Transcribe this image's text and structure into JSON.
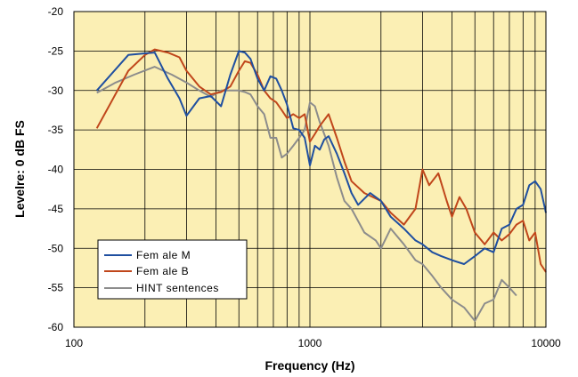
{
  "chart_data": {
    "type": "line",
    "title": "",
    "xlabel": "Frequency (Hz)",
    "ylabel": "Levelre: 0 dB FS",
    "x_scale": "log",
    "xlim": [
      100,
      10000
    ],
    "ylim": [
      -60,
      -20
    ],
    "x_ticks": [
      100,
      1000,
      10000
    ],
    "x_tick_labels": [
      "100",
      "1000",
      "10000"
    ],
    "y_ticks": [
      -20,
      -25,
      -30,
      -35,
      -40,
      -45,
      -50,
      -55,
      -60
    ],
    "y_tick_labels": [
      "-20",
      "-25",
      "-30",
      "-35",
      "-40",
      "-45",
      "-50",
      "-55",
      "-60"
    ],
    "grid": true,
    "background_color": "#fbefb4",
    "legend_position": "bottom-left",
    "series": [
      {
        "name": "Fem ale M",
        "color": "#1f4fa0",
        "points": [
          [
            125,
            -30
          ],
          [
            170,
            -25.5
          ],
          [
            200,
            -25.3
          ],
          [
            220,
            -25.2
          ],
          [
            250,
            -28.5
          ],
          [
            280,
            -31
          ],
          [
            300,
            -33.2
          ],
          [
            340,
            -31
          ],
          [
            380,
            -30.7
          ],
          [
            420,
            -32
          ],
          [
            460,
            -28
          ],
          [
            500,
            -25
          ],
          [
            530,
            -25.2
          ],
          [
            560,
            -26
          ],
          [
            600,
            -28.5
          ],
          [
            640,
            -30
          ],
          [
            680,
            -28.2
          ],
          [
            720,
            -28.5
          ],
          [
            760,
            -30
          ],
          [
            800,
            -31.8
          ],
          [
            850,
            -34.8
          ],
          [
            900,
            -35
          ],
          [
            950,
            -36
          ],
          [
            1000,
            -39.5
          ],
          [
            1050,
            -37
          ],
          [
            1100,
            -37.5
          ],
          [
            1150,
            -36.2
          ],
          [
            1200,
            -35.8
          ],
          [
            1300,
            -38
          ],
          [
            1400,
            -40.5
          ],
          [
            1500,
            -43
          ],
          [
            1600,
            -44.5
          ],
          [
            1800,
            -43
          ],
          [
            2000,
            -44
          ],
          [
            2200,
            -46
          ],
          [
            2500,
            -47.5
          ],
          [
            2800,
            -49
          ],
          [
            3000,
            -49.5
          ],
          [
            3300,
            -50.5
          ],
          [
            3600,
            -51
          ],
          [
            4000,
            -51.5
          ],
          [
            4500,
            -52
          ],
          [
            5000,
            -51
          ],
          [
            5500,
            -50
          ],
          [
            6000,
            -50.5
          ],
          [
            6500,
            -47.5
          ],
          [
            7000,
            -47
          ],
          [
            7500,
            -45
          ],
          [
            8000,
            -44.5
          ],
          [
            8500,
            -42
          ],
          [
            9000,
            -41.5
          ],
          [
            9500,
            -42.5
          ],
          [
            10000,
            -45.5
          ]
        ]
      },
      {
        "name": "Fem ale B",
        "color": "#c0461b",
        "points": [
          [
            125,
            -34.8
          ],
          [
            170,
            -27.5
          ],
          [
            200,
            -25.5
          ],
          [
            220,
            -24.8
          ],
          [
            250,
            -25.2
          ],
          [
            280,
            -25.8
          ],
          [
            300,
            -27.5
          ],
          [
            340,
            -29.5
          ],
          [
            380,
            -30.5
          ],
          [
            420,
            -30.2
          ],
          [
            460,
            -29.5
          ],
          [
            500,
            -27.5
          ],
          [
            530,
            -26.3
          ],
          [
            560,
            -26.5
          ],
          [
            600,
            -28
          ],
          [
            640,
            -30
          ],
          [
            680,
            -31
          ],
          [
            720,
            -31.5
          ],
          [
            760,
            -32.5
          ],
          [
            800,
            -33.5
          ],
          [
            850,
            -33
          ],
          [
            900,
            -33.5
          ],
          [
            950,
            -33
          ],
          [
            1000,
            -36.5
          ],
          [
            1050,
            -35.5
          ],
          [
            1100,
            -34.5
          ],
          [
            1200,
            -33
          ],
          [
            1300,
            -36
          ],
          [
            1400,
            -39
          ],
          [
            1500,
            -41.5
          ],
          [
            1700,
            -43
          ],
          [
            2000,
            -44
          ],
          [
            2200,
            -45.5
          ],
          [
            2500,
            -47
          ],
          [
            2800,
            -45
          ],
          [
            3000,
            -40
          ],
          [
            3200,
            -42
          ],
          [
            3500,
            -40.5
          ],
          [
            3800,
            -44
          ],
          [
            4000,
            -46
          ],
          [
            4300,
            -43.5
          ],
          [
            4600,
            -45
          ],
          [
            5000,
            -48
          ],
          [
            5500,
            -49.5
          ],
          [
            6000,
            -48
          ],
          [
            6500,
            -49
          ],
          [
            7000,
            -48.2
          ],
          [
            7500,
            -47
          ],
          [
            8000,
            -46.5
          ],
          [
            8500,
            -49
          ],
          [
            9000,
            -48
          ],
          [
            9500,
            -52
          ],
          [
            10000,
            -53
          ]
        ]
      },
      {
        "name": "HINT sentences",
        "color": "#8c8c8c",
        "points": [
          [
            125,
            -30.3
          ],
          [
            150,
            -29
          ],
          [
            180,
            -28
          ],
          [
            220,
            -27
          ],
          [
            260,
            -28
          ],
          [
            300,
            -29
          ],
          [
            340,
            -30
          ],
          [
            380,
            -30.8
          ],
          [
            420,
            -30
          ],
          [
            460,
            -30
          ],
          [
            500,
            -30
          ],
          [
            530,
            -30.2
          ],
          [
            560,
            -30.5
          ],
          [
            600,
            -32
          ],
          [
            640,
            -33
          ],
          [
            680,
            -36
          ],
          [
            720,
            -36
          ],
          [
            760,
            -38.5
          ],
          [
            800,
            -38
          ],
          [
            850,
            -37
          ],
          [
            900,
            -36
          ],
          [
            950,
            -35
          ],
          [
            1000,
            -31.5
          ],
          [
            1050,
            -32
          ],
          [
            1100,
            -34
          ],
          [
            1200,
            -37
          ],
          [
            1300,
            -41
          ],
          [
            1400,
            -44
          ],
          [
            1500,
            -45
          ],
          [
            1700,
            -48
          ],
          [
            1900,
            -49
          ],
          [
            2000,
            -50
          ],
          [
            2200,
            -47.5
          ],
          [
            2500,
            -49.5
          ],
          [
            2800,
            -51.5
          ],
          [
            3000,
            -52
          ],
          [
            3300,
            -53.5
          ],
          [
            3600,
            -55
          ],
          [
            4000,
            -56.5
          ],
          [
            4500,
            -57.5
          ],
          [
            5000,
            -59.2
          ],
          [
            5500,
            -57
          ],
          [
            6000,
            -56.5
          ],
          [
            6500,
            -54
          ],
          [
            7000,
            -55
          ],
          [
            7500,
            -56
          ]
        ]
      }
    ]
  }
}
